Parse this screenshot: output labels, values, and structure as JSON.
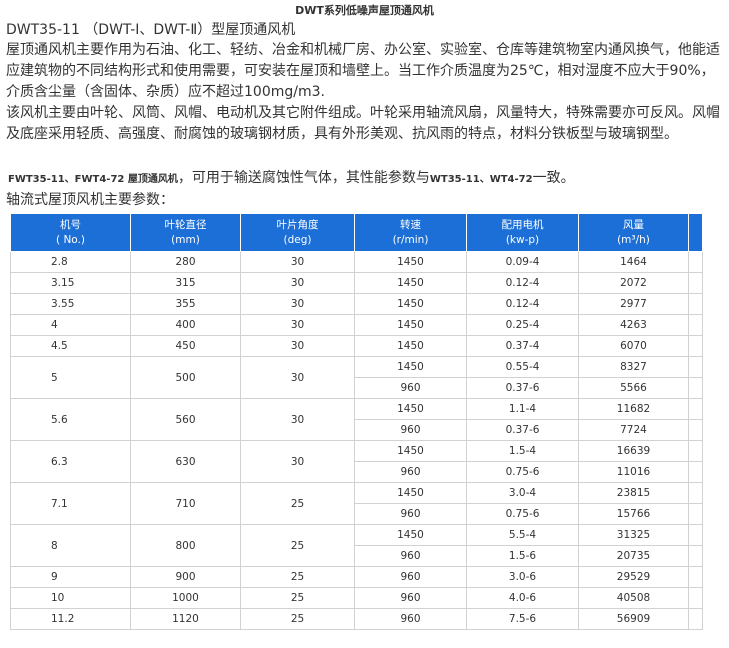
{
  "page_title": "DWT系列低噪声屋顶通风机",
  "heading": "DWT35-11 （DWT-Ⅰ、DWT-Ⅱ）型屋顶通风机",
  "paragraph1": " 屋顶通风机主要作用为石油、化工、轻纺、冶金和机械厂房、办公室、实验室、仓库等建筑物室内通风换气，他能适应建筑物的不同结构形式和使用需要，可安装在屋顶和墙壁上。当工作介质温度为25℃，相对湿度不应大于90%，介质含尘量（含固体、杂质）应不超过100mg/m3.",
  "paragraph2": " 该风机主要由叶轮、风筒、风帽、电动机及其它附件组成。叶轮采用轴流风扇，风量特大，特殊需要亦可反风。风帽及底座采用轻质、高强度、耐腐蚀的玻璃钢材质，具有外形美观、抗风雨的特点，材料分铁板型与玻璃钢型。",
  "paragraph3": {
    "models": "FWT35-11、FWT4-72 屋顶通风机",
    "text": "，可用于输送腐蚀性气体，其性能参数与",
    "models2": "WT35-11、WT4-72",
    "end": "一致。"
  },
  "table_caption": "轴流式屋顶风机主要参数：",
  "table": {
    "headers": [
      {
        "l1": "机号",
        "l2": "( No.)"
      },
      {
        "l1": "叶轮直径",
        "l2": "(mm)"
      },
      {
        "l1": "叶片角度",
        "l2": "(deg)"
      },
      {
        "l1": "转速",
        "l2": "(r/min)"
      },
      {
        "l1": "配用电机",
        "l2": "(kw-p)"
      },
      {
        "l1": "风量",
        "l2": "(m³/h)"
      }
    ],
    "groups": [
      {
        "no": "2.8",
        "dia": "280",
        "deg": "30",
        "rows": [
          {
            "rpm": "1450",
            "motor": "0.09-4",
            "flow": "1464"
          }
        ]
      },
      {
        "no": "3.15",
        "dia": "315",
        "deg": "30",
        "rows": [
          {
            "rpm": "1450",
            "motor": "0.12-4",
            "flow": "2072"
          }
        ]
      },
      {
        "no": "3.55",
        "dia": "355",
        "deg": "30",
        "rows": [
          {
            "rpm": "1450",
            "motor": "0.12-4",
            "flow": "2977"
          }
        ]
      },
      {
        "no": "4",
        "dia": "400",
        "deg": "30",
        "rows": [
          {
            "rpm": "1450",
            "motor": "0.25-4",
            "flow": "4263"
          }
        ]
      },
      {
        "no": "4.5",
        "dia": "450",
        "deg": "30",
        "rows": [
          {
            "rpm": "1450",
            "motor": "0.37-4",
            "flow": "6070"
          }
        ]
      },
      {
        "no": "5",
        "dia": "500",
        "deg": "30",
        "rows": [
          {
            "rpm": "1450",
            "motor": "0.55-4",
            "flow": "8327"
          },
          {
            "rpm": "960",
            "motor": "0.37-6",
            "flow": "5566"
          }
        ]
      },
      {
        "no": "5.6",
        "dia": "560",
        "deg": "30",
        "rows": [
          {
            "rpm": "1450",
            "motor": "1.1-4",
            "flow": "11682"
          },
          {
            "rpm": "960",
            "motor": "0.37-6",
            "flow": "7724"
          }
        ]
      },
      {
        "no": "6.3",
        "dia": "630",
        "deg": "30",
        "rows": [
          {
            "rpm": "1450",
            "motor": "1.5-4",
            "flow": "16639"
          },
          {
            "rpm": "960",
            "motor": "0.75-6",
            "flow": "11016"
          }
        ]
      },
      {
        "no": "7.1",
        "dia": "710",
        "deg": "25",
        "rows": [
          {
            "rpm": "1450",
            "motor": "3.0-4",
            "flow": "23815"
          },
          {
            "rpm": "960",
            "motor": "0.75-6",
            "flow": "15766"
          }
        ]
      },
      {
        "no": "8",
        "dia": "800",
        "deg": "25",
        "rows": [
          {
            "rpm": "1450",
            "motor": "5.5-4",
            "flow": "31325"
          },
          {
            "rpm": "960",
            "motor": "1.5-6",
            "flow": "20735"
          }
        ]
      },
      {
        "no": "9",
        "dia": "900",
        "deg": "25",
        "rows": [
          {
            "rpm": "960",
            "motor": "3.0-6",
            "flow": "29529"
          }
        ]
      },
      {
        "no": "10",
        "dia": "1000",
        "deg": "25",
        "rows": [
          {
            "rpm": "960",
            "motor": "4.0-6",
            "flow": "40508"
          }
        ]
      },
      {
        "no": "11.2",
        "dia": "1120",
        "deg": "25",
        "rows": [
          {
            "rpm": "960",
            "motor": "7.5-6",
            "flow": "56909"
          }
        ]
      }
    ]
  },
  "colors": {
    "header_bg": "#1b6fd6",
    "header_text": "#ffffff",
    "border": "#d2d2d2",
    "text": "#333333"
  }
}
